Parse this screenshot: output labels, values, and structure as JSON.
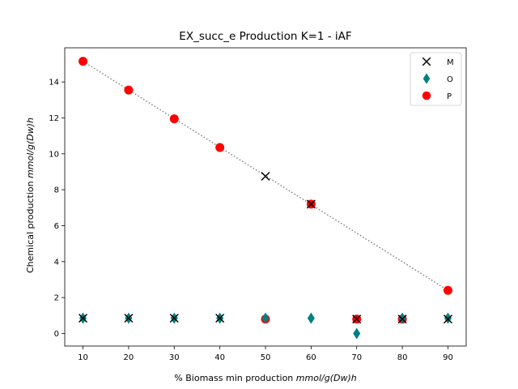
{
  "chart_data": {
    "type": "scatter",
    "title": "EX_succ_e Production K=1 - iAF",
    "xlabel": {
      "prefix": "% Biomass min production ",
      "unit": "mmol/g(Dw)h"
    },
    "ylabel": {
      "prefix": "Chemical production ",
      "unit": "mmol/g(Dw)h"
    },
    "xlim": [
      6,
      94
    ],
    "ylim": [
      -0.7,
      15.9
    ],
    "xticks": [
      10,
      20,
      30,
      40,
      50,
      60,
      70,
      80,
      90
    ],
    "yticks": [
      0,
      2,
      4,
      6,
      8,
      10,
      12,
      14
    ],
    "grid": false,
    "legend_position": "top-right",
    "reference_line": {
      "style": "dotted",
      "color": "#808080",
      "x": [
        10,
        90
      ],
      "y": [
        15.15,
        2.4
      ]
    },
    "series": [
      {
        "name": "M",
        "marker": "x",
        "color": "#000000",
        "points": [
          {
            "x": 10,
            "y": 0.85
          },
          {
            "x": 20,
            "y": 0.85
          },
          {
            "x": 30,
            "y": 0.85
          },
          {
            "x": 40,
            "y": 0.85
          },
          {
            "x": 50,
            "y": 8.75
          },
          {
            "x": 60,
            "y": 7.2
          },
          {
            "x": 70,
            "y": 0.8
          },
          {
            "x": 80,
            "y": 0.8
          },
          {
            "x": 90,
            "y": 0.8
          }
        ]
      },
      {
        "name": "O",
        "marker": "thin_diamond",
        "color": "#008080",
        "points": [
          {
            "x": 10,
            "y": 0.85
          },
          {
            "x": 20,
            "y": 0.85
          },
          {
            "x": 30,
            "y": 0.85
          },
          {
            "x": 40,
            "y": 0.85
          },
          {
            "x": 50,
            "y": 0.85
          },
          {
            "x": 60,
            "y": 0.85
          },
          {
            "x": 70,
            "y": 0.0
          },
          {
            "x": 80,
            "y": 0.85
          },
          {
            "x": 90,
            "y": 0.85
          }
        ]
      },
      {
        "name": "P",
        "marker": "circle",
        "color": "#ff0000",
        "points": [
          {
            "x": 10,
            "y": 15.15
          },
          {
            "x": 20,
            "y": 13.55
          },
          {
            "x": 30,
            "y": 11.95
          },
          {
            "x": 40,
            "y": 10.35
          },
          {
            "x": 50,
            "y": 0.8
          },
          {
            "x": 60,
            "y": 7.2
          },
          {
            "x": 70,
            "y": 0.8
          },
          {
            "x": 80,
            "y": 0.8
          },
          {
            "x": 90,
            "y": 2.4
          }
        ]
      }
    ]
  }
}
